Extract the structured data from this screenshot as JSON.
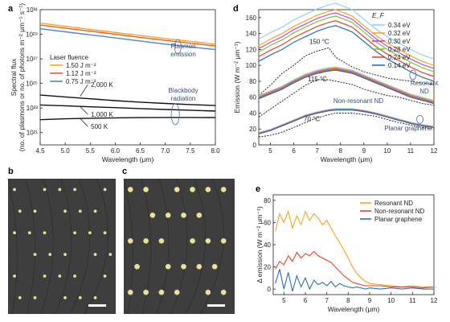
{
  "panel_letters": {
    "a": "a",
    "b": "b",
    "c": "c",
    "d": "d",
    "e": "e"
  },
  "chart_data": [
    {
      "id": "a",
      "type": "line",
      "xlabel": "Wavelength (μm)",
      "ylabel": "Spectral flux",
      "ylabel2": "(no. of plasmons or no. of photons m⁻² μm⁻¹ s⁻¹)",
      "xlim": [
        4.5,
        8.0
      ],
      "ylim_log10": [
        20,
        31
      ],
      "yscale": "log",
      "xticks": [
        "4.5",
        "5.0",
        "5.5",
        "6.0",
        "6.5",
        "7.0",
        "7.5",
        "8.0"
      ],
      "yticks": [
        {
          "exp": 21,
          "label": "10²¹"
        },
        {
          "exp": 23,
          "label": "10²³"
        },
        {
          "exp": 25,
          "label": "10²⁵"
        },
        {
          "exp": 27,
          "label": "10²⁷"
        },
        {
          "exp": 29,
          "label": "10²⁹"
        },
        {
          "exp": 31,
          "label": "10³¹"
        }
      ],
      "legend_title": "Laser fluence",
      "legend_position": "middle-left",
      "x": [
        4.5,
        5.0,
        5.5,
        6.0,
        6.5,
        7.0,
        7.5,
        8.0
      ],
      "series": [
        {
          "name": "1.50 J m⁻²",
          "color": "#f5a623",
          "log10": [
            29.9,
            29.65,
            29.4,
            29.15,
            28.9,
            28.65,
            28.42,
            28.2
          ]
        },
        {
          "name": "1.12 J m⁻²",
          "color": "#e8602c",
          "log10": [
            29.75,
            29.5,
            29.25,
            29.0,
            28.75,
            28.5,
            28.27,
            28.05
          ]
        },
        {
          "name": "0.75 J m⁻²",
          "color": "#4f86c6",
          "log10": [
            29.45,
            29.2,
            28.95,
            28.7,
            28.45,
            28.2,
            27.97,
            27.75
          ]
        },
        {
          "name": "2,000 K",
          "color": "#111111",
          "log10": [
            24.05,
            23.9,
            23.75,
            23.6,
            23.48,
            23.37,
            23.28,
            23.2
          ]
        },
        {
          "name": "1,000 K",
          "color": "#111111",
          "log10": [
            23.25,
            23.18,
            23.1,
            23.03,
            22.95,
            22.88,
            22.82,
            22.75
          ]
        },
        {
          "name": "500 K",
          "color": "#111111",
          "log10": [
            22.05,
            22.12,
            22.17,
            22.2,
            22.22,
            22.23,
            22.23,
            22.22
          ]
        }
      ],
      "annotations": {
        "plasmon": [
          "Plasmon",
          "emission"
        ],
        "blackbody": [
          "Blackbody",
          "radiation"
        ],
        "t2000": "2,000 K",
        "t1000": "1,000 K",
        "t500": "500 K"
      }
    },
    {
      "id": "d",
      "type": "line",
      "xlabel": "Wavelength (μm)",
      "ylabel": "Emission (W m⁻² μm⁻¹)",
      "xlim": [
        4.5,
        12
      ],
      "ylim": [
        0,
        170
      ],
      "xticks": [
        5,
        6,
        7,
        8,
        9,
        10,
        11,
        12
      ],
      "yticks": [
        0,
        20,
        40,
        60,
        80,
        100,
        120,
        140,
        160
      ],
      "legend_title": "E_F",
      "legend_position": "top-right",
      "fermi_levels": [
        {
          "name": "0.34 eV",
          "color": "#8fd3f5"
        },
        {
          "name": "0.32 eV",
          "color": "#f5a623"
        },
        {
          "name": "0.30 eV",
          "color": "#b84fd0"
        },
        {
          "name": "0.28 eV",
          "color": "#7dc242"
        },
        {
          "name": "0.24 eV",
          "color": "#e8462c"
        },
        {
          "name": "0.14 eV",
          "color": "#2f6db5"
        }
      ],
      "x": [
        4.5,
        5,
        5.5,
        6,
        6.5,
        7,
        7.5,
        7.8,
        8.5,
        9,
        9.5,
        10,
        10.5,
        11,
        11.5,
        12
      ],
      "groups": [
        {
          "label": "150 °C",
          "base": [
            105,
            113,
            120,
            129,
            136,
            143,
            148,
            150,
            142,
            130,
            118,
            108,
            100,
            92,
            85,
            80
          ],
          "offsets": [
            28,
            20,
            16,
            12,
            6,
            0
          ],
          "dotted": [
            62,
            75,
            90,
            100,
            112,
            118,
            122,
            110,
            98,
            92,
            88,
            84,
            82,
            80,
            78,
            76
          ]
        },
        {
          "label": "115 °C",
          "base": [
            58,
            64,
            70,
            78,
            85,
            90,
            93,
            94,
            90,
            84,
            78,
            72,
            66,
            60,
            56,
            52
          ],
          "offsets": [
            4,
            3,
            2,
            1,
            0.5,
            0
          ],
          "dotted": [
            35,
            45,
            55,
            65,
            75,
            82,
            82,
            80,
            76,
            70,
            66,
            62,
            60,
            56,
            52,
            50
          ]
        },
        {
          "label": "70 °C",
          "base": [
            14,
            18,
            24,
            30,
            36,
            40,
            43,
            44,
            44,
            42,
            39,
            35,
            31,
            27,
            24,
            22
          ],
          "offsets": [
            1.5,
            1,
            0.5,
            0,
            0,
            0
          ],
          "dotted": [
            10,
            12,
            16,
            22,
            28,
            34,
            38,
            40,
            40,
            38,
            36,
            32,
            28,
            25,
            22,
            20
          ]
        }
      ],
      "labels": {
        "resonant": [
          "Resonant",
          "ND"
        ],
        "nonresonant": "Non-resonant ND",
        "planar": "Planar graphene",
        "t150": "150 °C",
        "t115": "115 °C",
        "t70": "70 °C"
      }
    },
    {
      "id": "e",
      "type": "line",
      "xlabel": "Wavelength (μm)",
      "ylabel": "Δ emission (W m⁻² μm⁻¹)",
      "xlim": [
        4.5,
        12
      ],
      "ylim": [
        -5,
        85
      ],
      "xticks": [
        5,
        6,
        7,
        8,
        9,
        10,
        11,
        12
      ],
      "yticks": [
        0,
        20,
        40,
        60,
        80
      ],
      "legend_position": "top-right",
      "x": [
        4.6,
        4.8,
        5.0,
        5.2,
        5.4,
        5.6,
        5.8,
        6.0,
        6.2,
        6.4,
        6.6,
        6.8,
        7.0,
        7.2,
        7.4,
        7.6,
        7.8,
        8.0,
        8.2,
        8.4,
        8.6,
        8.8,
        9.0,
        9.5,
        10,
        10.5,
        11,
        11.5,
        12
      ],
      "series": [
        {
          "name": "Resonant ND",
          "color": "#f5a623",
          "values": [
            52,
            68,
            60,
            70,
            55,
            66,
            58,
            70,
            62,
            68,
            64,
            58,
            62,
            55,
            48,
            42,
            35,
            28,
            20,
            14,
            10,
            7,
            5,
            4,
            3,
            2,
            3,
            2,
            2
          ]
        },
        {
          "name": "Non-resonant ND",
          "color": "#e8462c",
          "values": [
            18,
            25,
            22,
            30,
            25,
            33,
            28,
            32,
            30,
            34,
            30,
            28,
            26,
            24,
            20,
            16,
            12,
            9,
            6,
            5,
            4,
            3,
            3,
            3,
            2,
            2,
            2,
            1,
            2
          ]
        },
        {
          "name": "Planar graphene",
          "color": "#2f6db5",
          "values": [
            5,
            18,
            0,
            15,
            -2,
            12,
            2,
            10,
            0,
            8,
            4,
            6,
            3,
            7,
            2,
            5,
            3,
            2,
            1,
            2,
            1,
            0,
            1,
            0,
            1,
            0,
            1,
            0,
            0
          ]
        }
      ]
    }
  ],
  "images": [
    {
      "id": "b",
      "description_role": "micrograph",
      "bg": "#3e3e3e",
      "dot_color": "#e8e39a",
      "scale_bar": true
    },
    {
      "id": "c",
      "description_role": "micrograph",
      "bg": "#3e3e3e",
      "dot_color": "#e8e39a",
      "scale_bar": true
    }
  ]
}
